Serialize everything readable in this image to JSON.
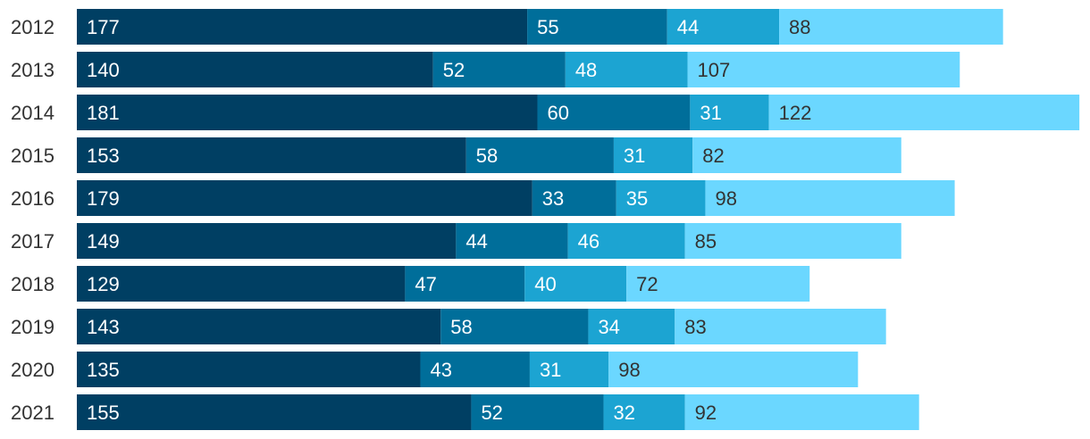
{
  "chart_data": {
    "type": "bar",
    "orientation": "horizontal",
    "stacked": true,
    "categories": [
      "2012",
      "2013",
      "2014",
      "2015",
      "2016",
      "2017",
      "2018",
      "2019",
      "2020",
      "2021"
    ],
    "series": [
      {
        "values": [
          177,
          140,
          181,
          153,
          179,
          149,
          129,
          143,
          135,
          155
        ],
        "color": "#003f63",
        "label_color": "#ffffff"
      },
      {
        "values": [
          55,
          52,
          60,
          58,
          33,
          44,
          47,
          58,
          43,
          52
        ],
        "color": "#006e9a",
        "label_color": "#ffffff"
      },
      {
        "values": [
          44,
          48,
          31,
          31,
          35,
          46,
          40,
          34,
          31,
          32
        ],
        "color": "#1ca4d2",
        "label_color": "#ffffff"
      },
      {
        "values": [
          88,
          107,
          122,
          82,
          98,
          85,
          72,
          83,
          98,
          92
        ],
        "color": "#6bd7ff",
        "label_color": "#333333"
      }
    ],
    "title": "",
    "xlabel": "",
    "ylabel": "",
    "xlim": [
      0,
      394
    ],
    "grid": false,
    "legend": false
  }
}
